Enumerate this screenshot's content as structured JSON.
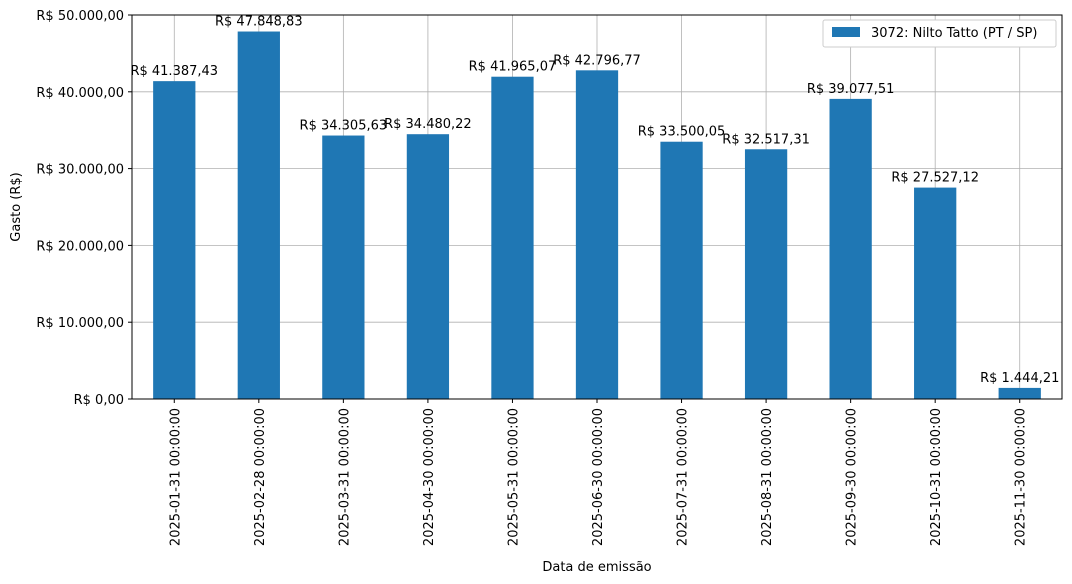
{
  "chart_data": {
    "type": "bar",
    "categories": [
      "2025-01-31 00:00:00",
      "2025-02-28 00:00:00",
      "2025-03-31 00:00:00",
      "2025-04-30 00:00:00",
      "2025-05-31 00:00:00",
      "2025-06-30 00:00:00",
      "2025-07-31 00:00:00",
      "2025-08-31 00:00:00",
      "2025-09-30 00:00:00",
      "2025-10-31 00:00:00",
      "2025-11-30 00:00:00"
    ],
    "series": [
      {
        "name": "3072: Nilto Tatto (PT / SP)",
        "color": "#1f77b4",
        "values": [
          41387.43,
          47848.83,
          34305.63,
          34480.22,
          41965.07,
          42796.77,
          33500.05,
          32517.31,
          39077.51,
          27527.12,
          1444.21
        ],
        "labels": [
          "R$ 41.387,43",
          "R$ 47.848,83",
          "R$ 34.305,63",
          "R$ 34.480,22",
          "R$ 41.965,07",
          "R$ 42.796,77",
          "R$ 33.500,05",
          "R$ 32.517,31",
          "R$ 39.077,51",
          "R$ 27.527,12",
          "R$ 1.444,21"
        ]
      }
    ],
    "xlabel": "Data de emissão",
    "ylabel": "Gasto (R$)",
    "ylim": [
      0,
      50000
    ],
    "yticks": [
      0,
      10000,
      20000,
      30000,
      40000,
      50000
    ],
    "ytick_labels": [
      "R$ 0,00",
      "R$ 10.000,00",
      "R$ 20.000,00",
      "R$ 30.000,00",
      "R$ 40.000,00",
      "R$ 50.000,00"
    ],
    "grid": true,
    "legend_position": "top-right"
  }
}
